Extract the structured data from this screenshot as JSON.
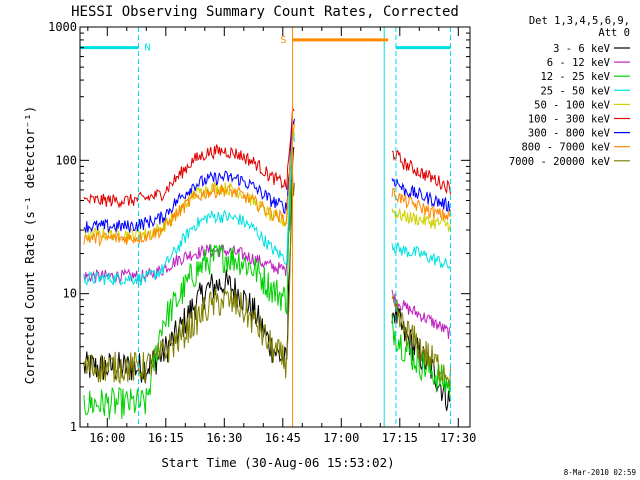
{
  "chart_data": {
    "type": "line",
    "title": "HESSI Observing Summary Count Rates, Corrected",
    "xlabel": "Start Time (30-Aug-06 15:53:02)",
    "ylabel": "Corrected Count Rate (s⁻¹ detector⁻¹)",
    "y_scale": "log",
    "ylim": [
      1,
      1000
    ],
    "xlim": [
      "15:53",
      "17:33"
    ],
    "x_ticks": [
      "16:00",
      "16:15",
      "16:30",
      "16:45",
      "17:00",
      "17:15",
      "17:30"
    ],
    "y_ticks": [
      "1",
      "10",
      "100",
      "1000"
    ],
    "grid": false,
    "legend": {
      "header": [
        "Det 1,3,4,5,6,9,",
        "Att 0"
      ],
      "placement": "right"
    },
    "data_gaps": [
      [
        "16:48",
        "17:13"
      ]
    ],
    "x": [
      "15:54",
      "16:02",
      "16:06",
      "16:10",
      "16:14",
      "16:18",
      "16:22",
      "16:26",
      "16:30",
      "16:34",
      "16:38",
      "16:42",
      "16:46",
      "16:47.5",
      "17:14",
      "17:16",
      "17:20",
      "17:24",
      "17:28"
    ],
    "series": [
      {
        "name": "3 - 6 keV",
        "color": "#000000",
        "values": [
          2.8,
          2.8,
          2.8,
          2.8,
          3.5,
          5,
          8,
          11,
          12,
          10,
          7,
          4,
          3,
          100,
          7,
          5,
          3.5,
          2.5,
          1.5
        ]
      },
      {
        "name": "6 - 12 keV",
        "color": "#c020c0",
        "values": [
          13.5,
          13.5,
          13.5,
          13.5,
          15,
          18,
          20,
          21,
          21,
          20,
          18,
          16,
          15,
          150,
          9,
          8,
          7,
          6,
          5
        ]
      },
      {
        "name": "12 - 25 keV",
        "color": "#00d000",
        "values": [
          1.5,
          1.5,
          1.5,
          1.5,
          6,
          9,
          14,
          18,
          19,
          18,
          15,
          11,
          9,
          150,
          5,
          4,
          3,
          2.5,
          2
        ]
      },
      {
        "name": "25 - 50 keV",
        "color": "#00e0e0",
        "values": [
          13,
          13,
          13,
          13,
          15,
          22,
          32,
          38,
          38,
          36,
          30,
          22,
          18,
          160,
          22,
          21,
          20,
          18,
          16
        ]
      },
      {
        "name": "50 - 100 keV",
        "color": "#d0d000",
        "values": [
          28,
          28,
          28,
          28,
          31,
          40,
          55,
          62,
          62,
          58,
          48,
          38,
          34,
          170,
          40,
          38,
          36,
          34,
          33
        ]
      },
      {
        "name": "100 - 300 keV",
        "color": "#e00000",
        "values": [
          50,
          50,
          50,
          52,
          56,
          75,
          100,
          115,
          118,
          110,
          95,
          75,
          65,
          230,
          110,
          95,
          82,
          72,
          62
        ]
      },
      {
        "name": "300 - 800 keV",
        "color": "#0000ff",
        "values": [
          32,
          32,
          32,
          34,
          37,
          50,
          65,
          72,
          75,
          72,
          62,
          50,
          44,
          200,
          70,
          60,
          55,
          50,
          45
        ]
      },
      {
        "name": "800 - 7000 keV",
        "color": "#ff8800",
        "values": [
          26,
          26,
          26,
          27,
          30,
          40,
          52,
          58,
          60,
          56,
          48,
          40,
          36,
          180,
          55,
          50,
          45,
          40,
          38
        ]
      },
      {
        "name": "7000 - 20000 keV",
        "color": "#808000",
        "values": [
          2.8,
          2.8,
          2.8,
          2.8,
          3.5,
          4.5,
          6,
          8,
          9,
          8,
          6,
          4,
          3,
          60,
          7,
          5.5,
          4,
          3,
          2.5
        ]
      }
    ],
    "flags": [
      {
        "label": "N",
        "color": "#00e0e0",
        "level": 700,
        "segments": [
          [
            "15:53",
            "16:08"
          ],
          [
            "17:14",
            "17:28"
          ]
        ],
        "boundaries": [
          "16:08",
          "17:11",
          "17:14",
          "17:28"
        ]
      },
      {
        "label": "S",
        "color": "#ff8800",
        "level": 800,
        "segments": [
          [
            "16:47.5",
            "17:12"
          ]
        ],
        "boundaries": [
          "16:47.5"
        ]
      }
    ]
  },
  "footer": {
    "timestamp": "8-Mar-2010 02:59"
  }
}
